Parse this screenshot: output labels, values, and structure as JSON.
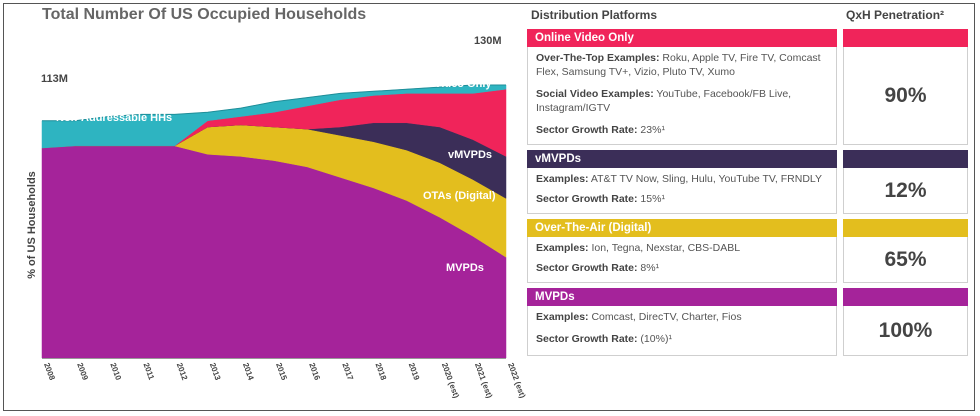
{
  "chart_data": {
    "type": "area",
    "title": "Total Number Of US Occupied Households",
    "ylabel": "% of US Households",
    "x": [
      "2008",
      "2009",
      "2010",
      "2011",
      "2012",
      "2013",
      "2014",
      "2015",
      "2016",
      "2017",
      "2018",
      "2019",
      "2020 (est)",
      "2021 (est)",
      "2022 (est)"
    ],
    "total_start_label": "113M",
    "total_end_label": "130M",
    "units": "millions of households (approx.)",
    "totals": [
      113,
      113,
      115,
      116,
      116,
      117,
      119,
      122,
      124,
      126,
      127,
      128,
      129,
      130,
      130
    ],
    "series": [
      {
        "name": "MVPDs",
        "label": "MVPDs",
        "color": "#A5239A",
        "values": [
          100,
          101,
          101,
          101,
          101,
          97,
          96,
          94,
          91,
          86,
          81,
          75,
          67,
          58,
          48
        ]
      },
      {
        "name": "OTAs (Digital)",
        "label": "OTAs (Digital)",
        "color": "#E3BE1E",
        "values": [
          0,
          0,
          0,
          0,
          0,
          13,
          15,
          16,
          18,
          20,
          22,
          24,
          26,
          27,
          28
        ]
      },
      {
        "name": "vMVPDs",
        "label": "vMVPDs",
        "color": "#3B2E58",
        "values": [
          0,
          0,
          0,
          0,
          0,
          0,
          0,
          0,
          0,
          4,
          9,
          13,
          17,
          19,
          20
        ]
      },
      {
        "name": "Online Video Only",
        "label": "Online Video Only",
        "color": "#F0245A",
        "values": [
          0,
          0,
          0,
          0,
          0,
          3,
          4,
          7,
          11,
          13,
          13,
          14,
          16,
          22,
          32
        ]
      },
      {
        "name": "Non-Addressable HHs",
        "label": "Non-Addressable HHs",
        "color": "#2EB4C1",
        "values": [
          13,
          12,
          14,
          15,
          15,
          4,
          4,
          5,
          4,
          3,
          2,
          2,
          3,
          4,
          2
        ]
      }
    ]
  },
  "panel": {
    "header_platforms": "Distribution Platforms",
    "header_penetration": "QxH Penetration²",
    "platforms": [
      {
        "name": "Online Video Only",
        "color": "#F0245A",
        "penetration": "90%",
        "lines": [
          {
            "label": "Over-The-Top Examples:",
            "text": " Roku, Apple TV, Fire TV, Comcast Flex, Samsung TV+, Vizio, Pluto TV, Xumo"
          },
          {
            "label": "Social Video Examples:",
            "text": " YouTube, Facebook/FB Live, Instagram/IGTV"
          },
          {
            "label": "Sector Growth Rate:",
            "text": " 23%¹"
          }
        ]
      },
      {
        "name": "vMVPDs",
        "color": "#3B2E58",
        "penetration": "12%",
        "lines": [
          {
            "label": "Examples:",
            "text": " AT&T TV Now, Sling, Hulu, YouTube TV, FRNDLY"
          },
          {
            "label": "Sector Growth Rate:",
            "text": " 15%¹"
          }
        ]
      },
      {
        "name": "Over-The-Air (Digital)",
        "color": "#E3BE1E",
        "penetration": "65%",
        "lines": [
          {
            "label": "Examples:",
            "text": " Ion, Tegna, Nexstar, CBS-DABL"
          },
          {
            "label": "Sector Growth Rate:",
            "text": " 8%¹"
          }
        ]
      },
      {
        "name": "MVPDs",
        "color": "#A5239A",
        "penetration": "100%",
        "lines": [
          {
            "label": "Examples:",
            "text": " Comcast, DirecTV, Charter, Fios"
          },
          {
            "label": "Sector Growth Rate:",
            "text": " (10%)¹"
          }
        ]
      }
    ]
  }
}
